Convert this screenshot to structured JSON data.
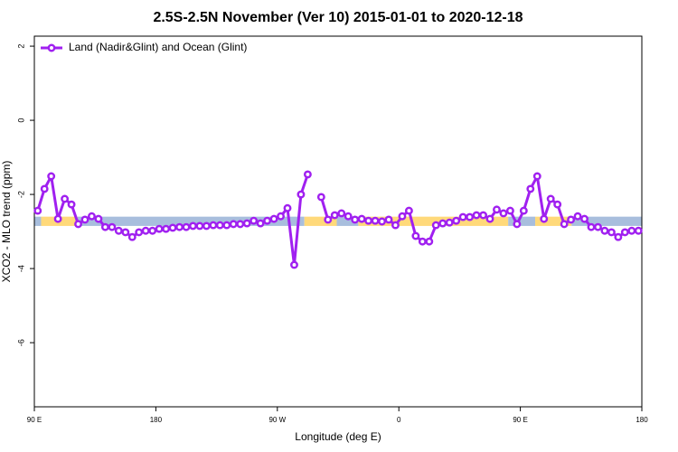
{
  "chart_data": {
    "type": "line",
    "title": "2.5S-2.5N November (Ver 10)   2015-01-01 to 2020-12-18",
    "x_label": "Longitude (deg E)",
    "y_label": "XCO2 - MLO trend (ppm)",
    "xlim": [
      90,
      540
    ],
    "ylim": [
      -7.73,
      2.27
    ],
    "xticks": [
      {
        "value": 90,
        "label": "90 E"
      },
      180,
      {
        "value": 270,
        "label": "90 W"
      },
      {
        "value": 360,
        "label": "0"
      },
      {
        "value": 450,
        "label": "90 E"
      },
      {
        "value": 540,
        "label": "180"
      }
    ],
    "yticks": [
      2,
      0,
      -2,
      -4,
      -6
    ],
    "legend": "top-left",
    "band": {
      "ylim": [
        -2.85,
        -2.6
      ],
      "segments": [
        {
          "x": [
            90,
            95
          ],
          "color": "#a8bedd"
        },
        {
          "x": [
            95,
            122
          ],
          "color": "#ffd97a"
        },
        {
          "x": [
            122,
            290
          ],
          "color": "#a8bedd"
        },
        {
          "x": [
            290,
            314
          ],
          "color": "#ffd97a"
        },
        {
          "x": [
            314,
            330
          ],
          "color": "#a8bedd"
        },
        {
          "x": [
            330,
            441
          ],
          "color": "#ffd97a"
        },
        {
          "x": [
            441,
            461
          ],
          "color": "#a8bedd"
        },
        {
          "x": [
            461,
            488
          ],
          "color": "#ffd97a"
        },
        {
          "x": [
            488,
            540
          ],
          "color": "#a8bedd"
        }
      ]
    },
    "x": [
      92.5,
      97.5,
      102.5,
      107.5,
      112.5,
      117.5,
      122.5,
      127.5,
      132.5,
      137.5,
      142.5,
      147.5,
      152.5,
      157.5,
      162.5,
      167.5,
      172.5,
      177.5,
      182.5,
      187.5,
      192.5,
      197.5,
      202.5,
      207.5,
      212.5,
      217.5,
      222.5,
      227.5,
      232.5,
      237.5,
      242.5,
      247.5,
      252.5,
      257.5,
      262.5,
      267.5,
      272.5,
      277.5,
      282.5,
      287.5,
      292.5,
      297.5,
      302.5,
      307.5,
      312.5,
      317.5,
      322.5,
      327.5,
      332.5,
      337.5,
      342.5,
      347.5,
      352.5,
      357.5,
      362.5,
      367.5,
      372.5,
      377.5,
      382.5,
      387.5,
      392.5,
      397.5,
      402.5,
      407.5,
      412.5,
      417.5,
      422.5,
      427.5,
      432.5,
      437.5,
      442.5,
      447.5,
      452.5,
      457.5,
      462.5,
      467.5,
      472.5,
      477.5,
      482.5,
      487.5,
      492.5,
      497.5,
      502.5,
      507.5,
      512.5,
      517.5,
      522.5,
      527.5,
      532.5,
      537.5
    ],
    "series": [
      {
        "name": "Land (Nadir&Glint) and Ocean (Glint)",
        "color": "#a020f0",
        "values": [
          -2.44,
          -1.85,
          -1.51,
          -2.66,
          -2.12,
          -2.27,
          -2.8,
          -2.68,
          -2.59,
          -2.66,
          -2.88,
          -2.88,
          -2.98,
          -3.02,
          -3.15,
          -3.02,
          -2.98,
          -2.98,
          -2.93,
          -2.93,
          -2.9,
          -2.88,
          -2.88,
          -2.85,
          -2.85,
          -2.85,
          -2.83,
          -2.83,
          -2.83,
          -2.8,
          -2.8,
          -2.78,
          -2.71,
          -2.78,
          -2.71,
          -2.66,
          -2.59,
          -2.37,
          -3.9,
          -2.0,
          -1.46,
          null,
          -2.07,
          -2.68,
          -2.56,
          -2.51,
          -2.59,
          -2.68,
          -2.66,
          -2.71,
          -2.71,
          -2.73,
          -2.68,
          -2.83,
          -2.59,
          -2.44,
          -3.12,
          -3.27,
          -3.27,
          -2.83,
          -2.78,
          -2.76,
          -2.71,
          -2.61,
          -2.61,
          -2.56,
          -2.56,
          -2.66,
          -2.41,
          -2.51,
          -2.44,
          -2.8,
          -2.44,
          -1.85,
          -1.51,
          -2.66,
          -2.12,
          -2.27,
          -2.8,
          -2.68,
          -2.59,
          -2.66,
          -2.88,
          -2.88,
          -2.98,
          -3.02,
          -3.15,
          -3.02,
          -2.98,
          -2.98
        ]
      }
    ]
  }
}
